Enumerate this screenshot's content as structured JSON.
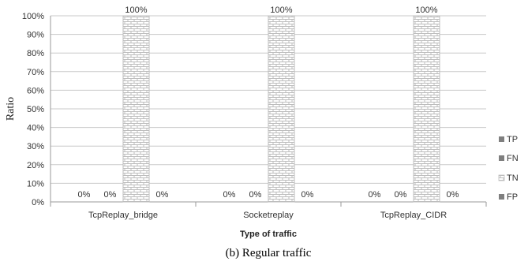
{
  "chart_data": {
    "type": "bar",
    "title": "",
    "caption": "(b) Regular traffic",
    "xlabel": "Type of traffic",
    "ylabel": "Ratio",
    "ylim": [
      0,
      100
    ],
    "yticks": [
      "0%",
      "10%",
      "20%",
      "30%",
      "40%",
      "50%",
      "60%",
      "70%",
      "80%",
      "90%",
      "100%"
    ],
    "grid": true,
    "legend_position": "right",
    "categories": [
      "TcpReplay_bridge",
      "Socketreplay",
      "TcpReplay_CIDR"
    ],
    "series": [
      {
        "name": "TP",
        "values": [
          0,
          0,
          0
        ],
        "labels": [
          "0%",
          "0%",
          "0%"
        ],
        "color": "#7f7f7f"
      },
      {
        "name": "FN",
        "values": [
          0,
          0,
          0
        ],
        "labels": [
          "0%",
          "0%",
          "0%"
        ],
        "color": "#7f7f7f"
      },
      {
        "name": "TN",
        "values": [
          100,
          100,
          100
        ],
        "labels": [
          "100%",
          "100%",
          "100%"
        ],
        "color": "#d9d9d9",
        "pattern": "brick"
      },
      {
        "name": "FP",
        "values": [
          0,
          0,
          0
        ],
        "labels": [
          "0%",
          "0%",
          "0%"
        ],
        "color": "#7f7f7f"
      }
    ]
  }
}
